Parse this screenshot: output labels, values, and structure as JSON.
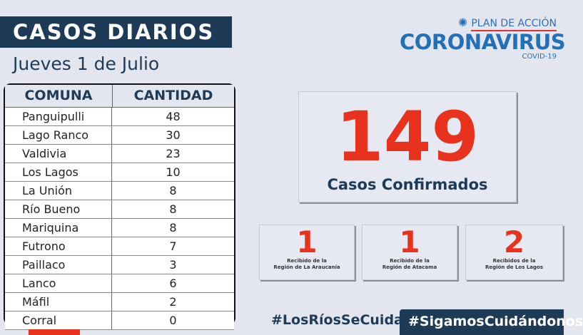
{
  "header": {
    "title": "CASOS DIARIOS",
    "date": "Jueves 1 de Julio"
  },
  "table": {
    "headers": [
      "COMUNA",
      "CANTIDAD"
    ],
    "rows": [
      [
        "Panguipulli",
        "48"
      ],
      [
        "Lago Ranco",
        "30"
      ],
      [
        "Valdivia",
        "23"
      ],
      [
        "Los Lagos",
        "10"
      ],
      [
        "La Unión",
        "8"
      ],
      [
        "Río Bueno",
        "8"
      ],
      [
        "Mariquina",
        "8"
      ],
      [
        "Futrono",
        "7"
      ],
      [
        "Paillaco",
        "3"
      ],
      [
        "Lanco",
        "6"
      ],
      [
        "Máfil",
        "2"
      ],
      [
        "Corral",
        "0"
      ]
    ]
  },
  "total": {
    "value": "149",
    "label": "Casos Confirmados"
  },
  "imported": [
    {
      "value": "1",
      "label": "Recibido de la\nRegión de La Araucanía"
    },
    {
      "value": "1",
      "label": "Recibido de la\nRegión de Atacama"
    },
    {
      "value": "2",
      "label": "Recibidos de la\nRegión de Los Lagos"
    }
  ],
  "logo": {
    "plan": "PLAN DE ACCIÓN",
    "name": "CORONAVIRUS",
    "sub": "COVID-19"
  },
  "hashtags": [
    "#LosRíosSeCuida",
    "#SigamosCuidándonos"
  ],
  "colors": {
    "navy": "#1d3a57",
    "red": "#e8321e",
    "blue": "#2470b8",
    "background": "#e3e6ef"
  }
}
